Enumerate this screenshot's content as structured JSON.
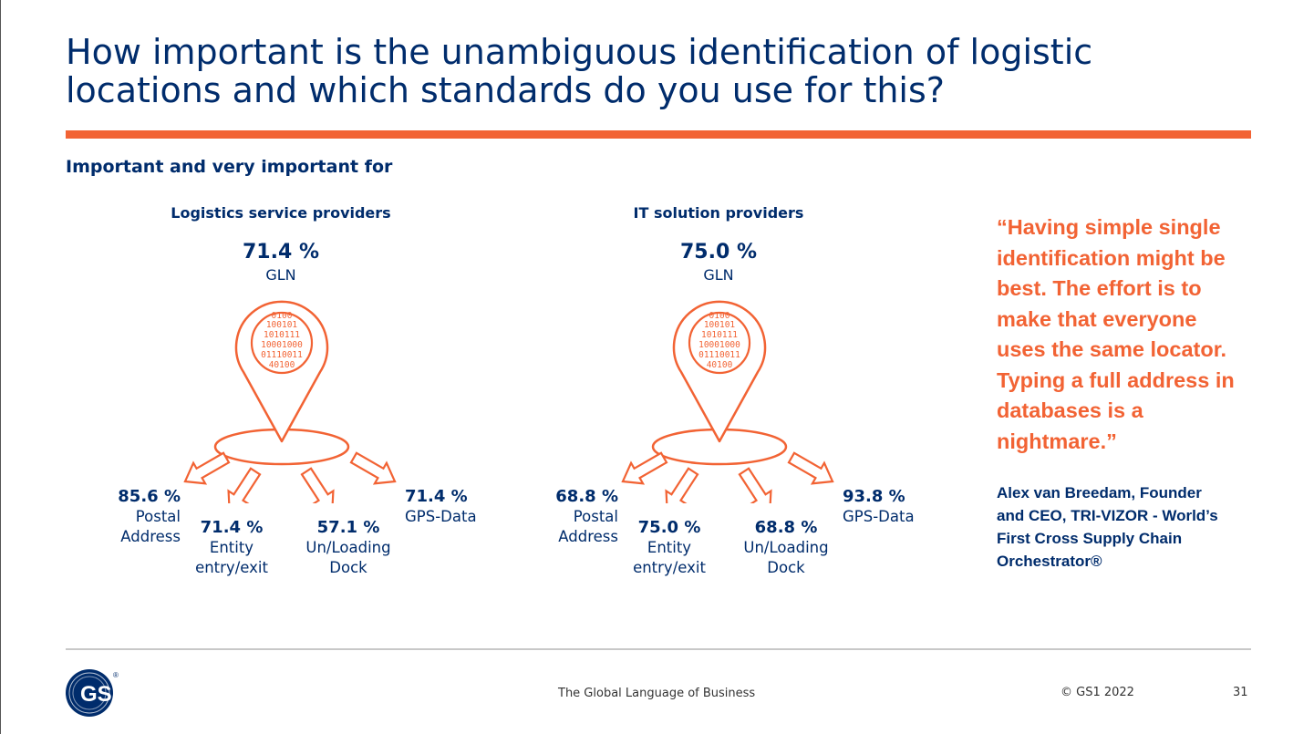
{
  "slide": {
    "title_line1": "How important is the unambiguous identification of logistic",
    "title_line2": "locations and which standards do you use for this?",
    "subtitle": "Important and very important for"
  },
  "panels": [
    {
      "title": "Logistics service providers",
      "gln": {
        "value": "71.4 %",
        "label": "GLN"
      },
      "postal": {
        "value": "85.6 %",
        "label1": "Postal",
        "label2": "Address"
      },
      "entity": {
        "value": "71.4 %",
        "label1": "Entity",
        "label2": "entry/exit"
      },
      "dock": {
        "value": "57.1 %",
        "label1": "Un/Loading",
        "label2": "Dock"
      },
      "gps": {
        "value": "71.4 %",
        "label1": "GPS-Data"
      }
    },
    {
      "title": "IT solution providers",
      "gln": {
        "value": "75.0 %",
        "label": "GLN"
      },
      "postal": {
        "value": "68.8 %",
        "label1": "Postal",
        "label2": "Address"
      },
      "entity": {
        "value": "75.0 %",
        "label1": "Entity",
        "label2": "entry/exit"
      },
      "dock": {
        "value": "68.8 %",
        "label1": "Un/Loading",
        "label2": "Dock"
      },
      "gps": {
        "value": "93.8 %",
        "label1": "GPS-Data"
      }
    }
  ],
  "binary_lines": [
    "0100",
    "100101",
    "1010111",
    "10001000",
    "01110011",
    "40100"
  ],
  "quote": {
    "lines": [
      "“Having simple single",
      "identification might be",
      "best. The effort is to",
      "make that everyone",
      "uses the same locator.",
      "Typing a full address in",
      "databases is a",
      "nightmare.”"
    ]
  },
  "attribution": {
    "lines": [
      "Alex van Breedam, Founder",
      "and CEO, TRI-VIZOR - World’s",
      "First Cross Supply Chain",
      "Orchestrator®"
    ]
  },
  "footer": {
    "logo_text": "GS1",
    "logo_mark": "®",
    "tagline": "The Global Language of Business",
    "copyright": "© GS1 2022",
    "page_number": "31"
  },
  "colors": {
    "navy": "#002C6C",
    "orange": "#F26334",
    "gray_rule": "#c8c8c8"
  },
  "icons": [
    "location-pin-icon",
    "binary-data-icon",
    "arrow-icon",
    "gs1-logo"
  ]
}
